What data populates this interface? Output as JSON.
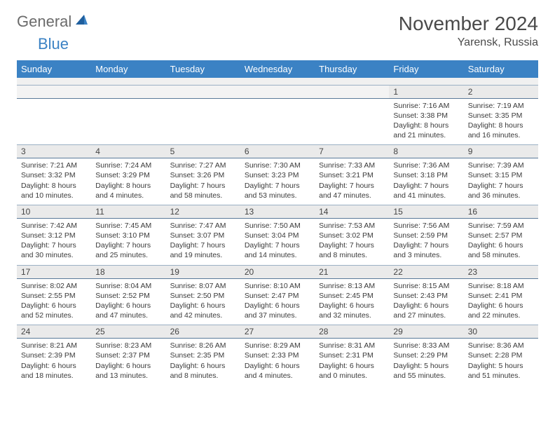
{
  "logo": {
    "part1": "General",
    "part2": "Blue"
  },
  "title": "November 2024",
  "location": "Yarensk, Russia",
  "colors": {
    "header_bg": "#3b82c4",
    "header_text": "#ffffff",
    "daynum_bg": "#eaeaea",
    "border": "#9bb0c4",
    "logo_gray": "#6b6b6b",
    "logo_blue": "#3b82c4"
  },
  "day_headers": [
    "Sunday",
    "Monday",
    "Tuesday",
    "Wednesday",
    "Thursday",
    "Friday",
    "Saturday"
  ],
  "weeks": [
    [
      {
        "n": "",
        "lines": []
      },
      {
        "n": "",
        "lines": []
      },
      {
        "n": "",
        "lines": []
      },
      {
        "n": "",
        "lines": []
      },
      {
        "n": "",
        "lines": []
      },
      {
        "n": "1",
        "lines": [
          "Sunrise: 7:16 AM",
          "Sunset: 3:38 PM",
          "Daylight: 8 hours",
          "and 21 minutes."
        ]
      },
      {
        "n": "2",
        "lines": [
          "Sunrise: 7:19 AM",
          "Sunset: 3:35 PM",
          "Daylight: 8 hours",
          "and 16 minutes."
        ]
      }
    ],
    [
      {
        "n": "3",
        "lines": [
          "Sunrise: 7:21 AM",
          "Sunset: 3:32 PM",
          "Daylight: 8 hours",
          "and 10 minutes."
        ]
      },
      {
        "n": "4",
        "lines": [
          "Sunrise: 7:24 AM",
          "Sunset: 3:29 PM",
          "Daylight: 8 hours",
          "and 4 minutes."
        ]
      },
      {
        "n": "5",
        "lines": [
          "Sunrise: 7:27 AM",
          "Sunset: 3:26 PM",
          "Daylight: 7 hours",
          "and 58 minutes."
        ]
      },
      {
        "n": "6",
        "lines": [
          "Sunrise: 7:30 AM",
          "Sunset: 3:23 PM",
          "Daylight: 7 hours",
          "and 53 minutes."
        ]
      },
      {
        "n": "7",
        "lines": [
          "Sunrise: 7:33 AM",
          "Sunset: 3:21 PM",
          "Daylight: 7 hours",
          "and 47 minutes."
        ]
      },
      {
        "n": "8",
        "lines": [
          "Sunrise: 7:36 AM",
          "Sunset: 3:18 PM",
          "Daylight: 7 hours",
          "and 41 minutes."
        ]
      },
      {
        "n": "9",
        "lines": [
          "Sunrise: 7:39 AM",
          "Sunset: 3:15 PM",
          "Daylight: 7 hours",
          "and 36 minutes."
        ]
      }
    ],
    [
      {
        "n": "10",
        "lines": [
          "Sunrise: 7:42 AM",
          "Sunset: 3:12 PM",
          "Daylight: 7 hours",
          "and 30 minutes."
        ]
      },
      {
        "n": "11",
        "lines": [
          "Sunrise: 7:45 AM",
          "Sunset: 3:10 PM",
          "Daylight: 7 hours",
          "and 25 minutes."
        ]
      },
      {
        "n": "12",
        "lines": [
          "Sunrise: 7:47 AM",
          "Sunset: 3:07 PM",
          "Daylight: 7 hours",
          "and 19 minutes."
        ]
      },
      {
        "n": "13",
        "lines": [
          "Sunrise: 7:50 AM",
          "Sunset: 3:04 PM",
          "Daylight: 7 hours",
          "and 14 minutes."
        ]
      },
      {
        "n": "14",
        "lines": [
          "Sunrise: 7:53 AM",
          "Sunset: 3:02 PM",
          "Daylight: 7 hours",
          "and 8 minutes."
        ]
      },
      {
        "n": "15",
        "lines": [
          "Sunrise: 7:56 AM",
          "Sunset: 2:59 PM",
          "Daylight: 7 hours",
          "and 3 minutes."
        ]
      },
      {
        "n": "16",
        "lines": [
          "Sunrise: 7:59 AM",
          "Sunset: 2:57 PM",
          "Daylight: 6 hours",
          "and 58 minutes."
        ]
      }
    ],
    [
      {
        "n": "17",
        "lines": [
          "Sunrise: 8:02 AM",
          "Sunset: 2:55 PM",
          "Daylight: 6 hours",
          "and 52 minutes."
        ]
      },
      {
        "n": "18",
        "lines": [
          "Sunrise: 8:04 AM",
          "Sunset: 2:52 PM",
          "Daylight: 6 hours",
          "and 47 minutes."
        ]
      },
      {
        "n": "19",
        "lines": [
          "Sunrise: 8:07 AM",
          "Sunset: 2:50 PM",
          "Daylight: 6 hours",
          "and 42 minutes."
        ]
      },
      {
        "n": "20",
        "lines": [
          "Sunrise: 8:10 AM",
          "Sunset: 2:47 PM",
          "Daylight: 6 hours",
          "and 37 minutes."
        ]
      },
      {
        "n": "21",
        "lines": [
          "Sunrise: 8:13 AM",
          "Sunset: 2:45 PM",
          "Daylight: 6 hours",
          "and 32 minutes."
        ]
      },
      {
        "n": "22",
        "lines": [
          "Sunrise: 8:15 AM",
          "Sunset: 2:43 PM",
          "Daylight: 6 hours",
          "and 27 minutes."
        ]
      },
      {
        "n": "23",
        "lines": [
          "Sunrise: 8:18 AM",
          "Sunset: 2:41 PM",
          "Daylight: 6 hours",
          "and 22 minutes."
        ]
      }
    ],
    [
      {
        "n": "24",
        "lines": [
          "Sunrise: 8:21 AM",
          "Sunset: 2:39 PM",
          "Daylight: 6 hours",
          "and 18 minutes."
        ]
      },
      {
        "n": "25",
        "lines": [
          "Sunrise: 8:23 AM",
          "Sunset: 2:37 PM",
          "Daylight: 6 hours",
          "and 13 minutes."
        ]
      },
      {
        "n": "26",
        "lines": [
          "Sunrise: 8:26 AM",
          "Sunset: 2:35 PM",
          "Daylight: 6 hours",
          "and 8 minutes."
        ]
      },
      {
        "n": "27",
        "lines": [
          "Sunrise: 8:29 AM",
          "Sunset: 2:33 PM",
          "Daylight: 6 hours",
          "and 4 minutes."
        ]
      },
      {
        "n": "28",
        "lines": [
          "Sunrise: 8:31 AM",
          "Sunset: 2:31 PM",
          "Daylight: 6 hours",
          "and 0 minutes."
        ]
      },
      {
        "n": "29",
        "lines": [
          "Sunrise: 8:33 AM",
          "Sunset: 2:29 PM",
          "Daylight: 5 hours",
          "and 55 minutes."
        ]
      },
      {
        "n": "30",
        "lines": [
          "Sunrise: 8:36 AM",
          "Sunset: 2:28 PM",
          "Daylight: 5 hours",
          "and 51 minutes."
        ]
      }
    ]
  ]
}
